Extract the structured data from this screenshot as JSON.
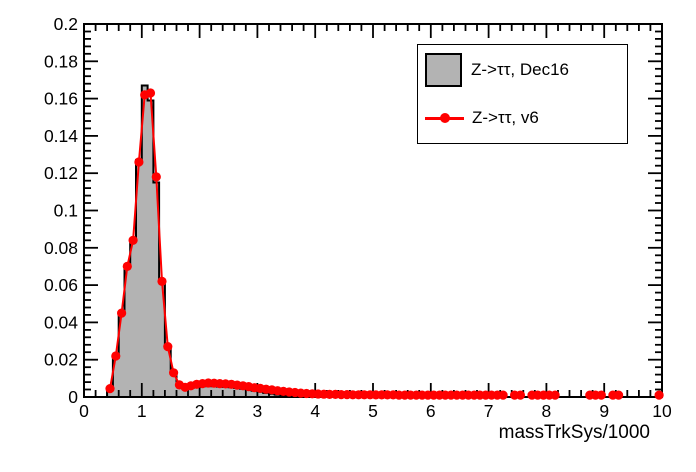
{
  "chart_data": {
    "type": "bar",
    "subtype": "root-histogram-with-graph-overlay",
    "title": "",
    "xlabel": "massTrkSys/1000",
    "ylabel": "",
    "xlim": [
      0,
      10
    ],
    "ylim": [
      0,
      0.2
    ],
    "grid": false,
    "legend_position": "top-right",
    "x_tick_labels": [
      "0",
      "1",
      "2",
      "3",
      "4",
      "5",
      "6",
      "7",
      "8",
      "9",
      "10"
    ],
    "x_tick_values": [
      0,
      1,
      2,
      3,
      4,
      5,
      6,
      7,
      8,
      9,
      10
    ],
    "x_minor_step": 0.2,
    "y_tick_labels": [
      "0",
      "0.02",
      "0.04",
      "0.06",
      "0.08",
      "0.1",
      "0.12",
      "0.14",
      "0.16",
      "0.18",
      "0.2"
    ],
    "y_tick_values": [
      0,
      0.02,
      0.04,
      0.06,
      0.08,
      0.1,
      0.12,
      0.14,
      0.16,
      0.18,
      0.2
    ],
    "y_minor_step": 0.004,
    "colors": {
      "hist_fill": "#b3b3b3",
      "hist_line": "#000000",
      "graph": "#ff0000",
      "frame": "#000000",
      "background": "#ffffff",
      "text": "#000000"
    },
    "legend": [
      {
        "label": "Z->ττ, Dec16",
        "style": "filled-box"
      },
      {
        "label": "Z->ττ, v6",
        "style": "line-with-marker"
      }
    ],
    "series": [
      {
        "name": "Z->ττ, Dec16",
        "type": "step-filled-histogram",
        "first_bin_left_edge": 0.4,
        "bin_width": 0.1,
        "values": [
          0.004,
          0.021,
          0.045,
          0.07,
          0.084,
          0.127,
          0.167,
          0.159,
          0.115,
          0.062,
          0.027,
          0.013,
          0.006,
          0.0048,
          0.005,
          0.0054,
          0.0058,
          0.006,
          0.0058,
          0.0056,
          0.0054,
          0.0052,
          0.0048,
          0.0044,
          0.004,
          0.0034,
          0.0028,
          0.0022,
          0.0017,
          0.0013,
          0.001,
          0.0008,
          0.0007,
          0.0006,
          0.0005,
          0.0005
        ]
      },
      {
        "name": "Z->ττ, v6",
        "type": "line-with-circle-markers",
        "points": [
          [
            0.45,
            0.0045
          ],
          [
            0.55,
            0.022
          ],
          [
            0.65,
            0.045
          ],
          [
            0.75,
            0.07
          ],
          [
            0.85,
            0.084
          ],
          [
            0.95,
            0.126
          ],
          [
            1.05,
            0.162
          ],
          [
            1.15,
            0.163
          ],
          [
            1.25,
            0.118
          ],
          [
            1.35,
            0.062
          ],
          [
            1.45,
            0.027
          ],
          [
            1.55,
            0.013
          ],
          [
            1.65,
            0.0065
          ],
          [
            1.75,
            0.0052
          ],
          [
            1.85,
            0.006
          ],
          [
            1.95,
            0.0068
          ],
          [
            2.05,
            0.0072
          ],
          [
            2.15,
            0.0075
          ],
          [
            2.25,
            0.0074
          ],
          [
            2.35,
            0.0072
          ],
          [
            2.45,
            0.007
          ],
          [
            2.55,
            0.0068
          ],
          [
            2.65,
            0.0064
          ],
          [
            2.75,
            0.006
          ],
          [
            2.85,
            0.0056
          ],
          [
            2.95,
            0.005
          ],
          [
            3.05,
            0.0046
          ],
          [
            3.15,
            0.0042
          ],
          [
            3.25,
            0.0038
          ],
          [
            3.35,
            0.0034
          ],
          [
            3.45,
            0.003
          ],
          [
            3.55,
            0.0027
          ],
          [
            3.65,
            0.0024
          ],
          [
            3.75,
            0.0021
          ],
          [
            3.85,
            0.0019
          ],
          [
            3.95,
            0.0017
          ],
          [
            4.05,
            0.0016
          ],
          [
            4.15,
            0.0015
          ],
          [
            4.25,
            0.0014
          ],
          [
            4.35,
            0.0014
          ],
          [
            4.45,
            0.0013
          ],
          [
            4.55,
            0.0013
          ],
          [
            4.65,
            0.0012
          ],
          [
            4.75,
            0.0012
          ],
          [
            4.85,
            0.0012
          ],
          [
            4.95,
            0.0012
          ],
          [
            5.05,
            0.0011
          ],
          [
            5.15,
            0.0011
          ],
          [
            5.25,
            0.0011
          ],
          [
            5.35,
            0.0011
          ],
          [
            5.45,
            0.001
          ],
          [
            5.55,
            0.001
          ],
          [
            5.65,
            0.001
          ],
          [
            5.75,
            0.001
          ],
          [
            5.85,
            0.001
          ],
          [
            5.95,
            0.001
          ],
          [
            6.05,
            0.001
          ],
          [
            6.15,
            0.001
          ],
          [
            6.25,
            0.001
          ],
          [
            6.35,
            0.001
          ],
          [
            6.45,
            0.001
          ],
          [
            6.55,
            0.001
          ],
          [
            6.65,
            0.001
          ],
          [
            6.75,
            0.001
          ],
          [
            6.85,
            0.001
          ],
          [
            6.95,
            0.001
          ],
          [
            7.05,
            0.001
          ],
          [
            7.15,
            0.001
          ],
          [
            7.25,
            0.001
          ],
          [
            7.45,
            0.001
          ],
          [
            7.55,
            0.001
          ],
          [
            7.75,
            0.001
          ],
          [
            7.85,
            0.001
          ],
          [
            7.95,
            0.001
          ],
          [
            8.05,
            0.001
          ],
          [
            8.15,
            0.001
          ],
          [
            8.75,
            0.001
          ],
          [
            8.85,
            0.001
          ],
          [
            8.95,
            0.001
          ],
          [
            9.15,
            0.001
          ],
          [
            9.25,
            0.001
          ],
          [
            9.95,
            0.001
          ]
        ]
      }
    ]
  }
}
